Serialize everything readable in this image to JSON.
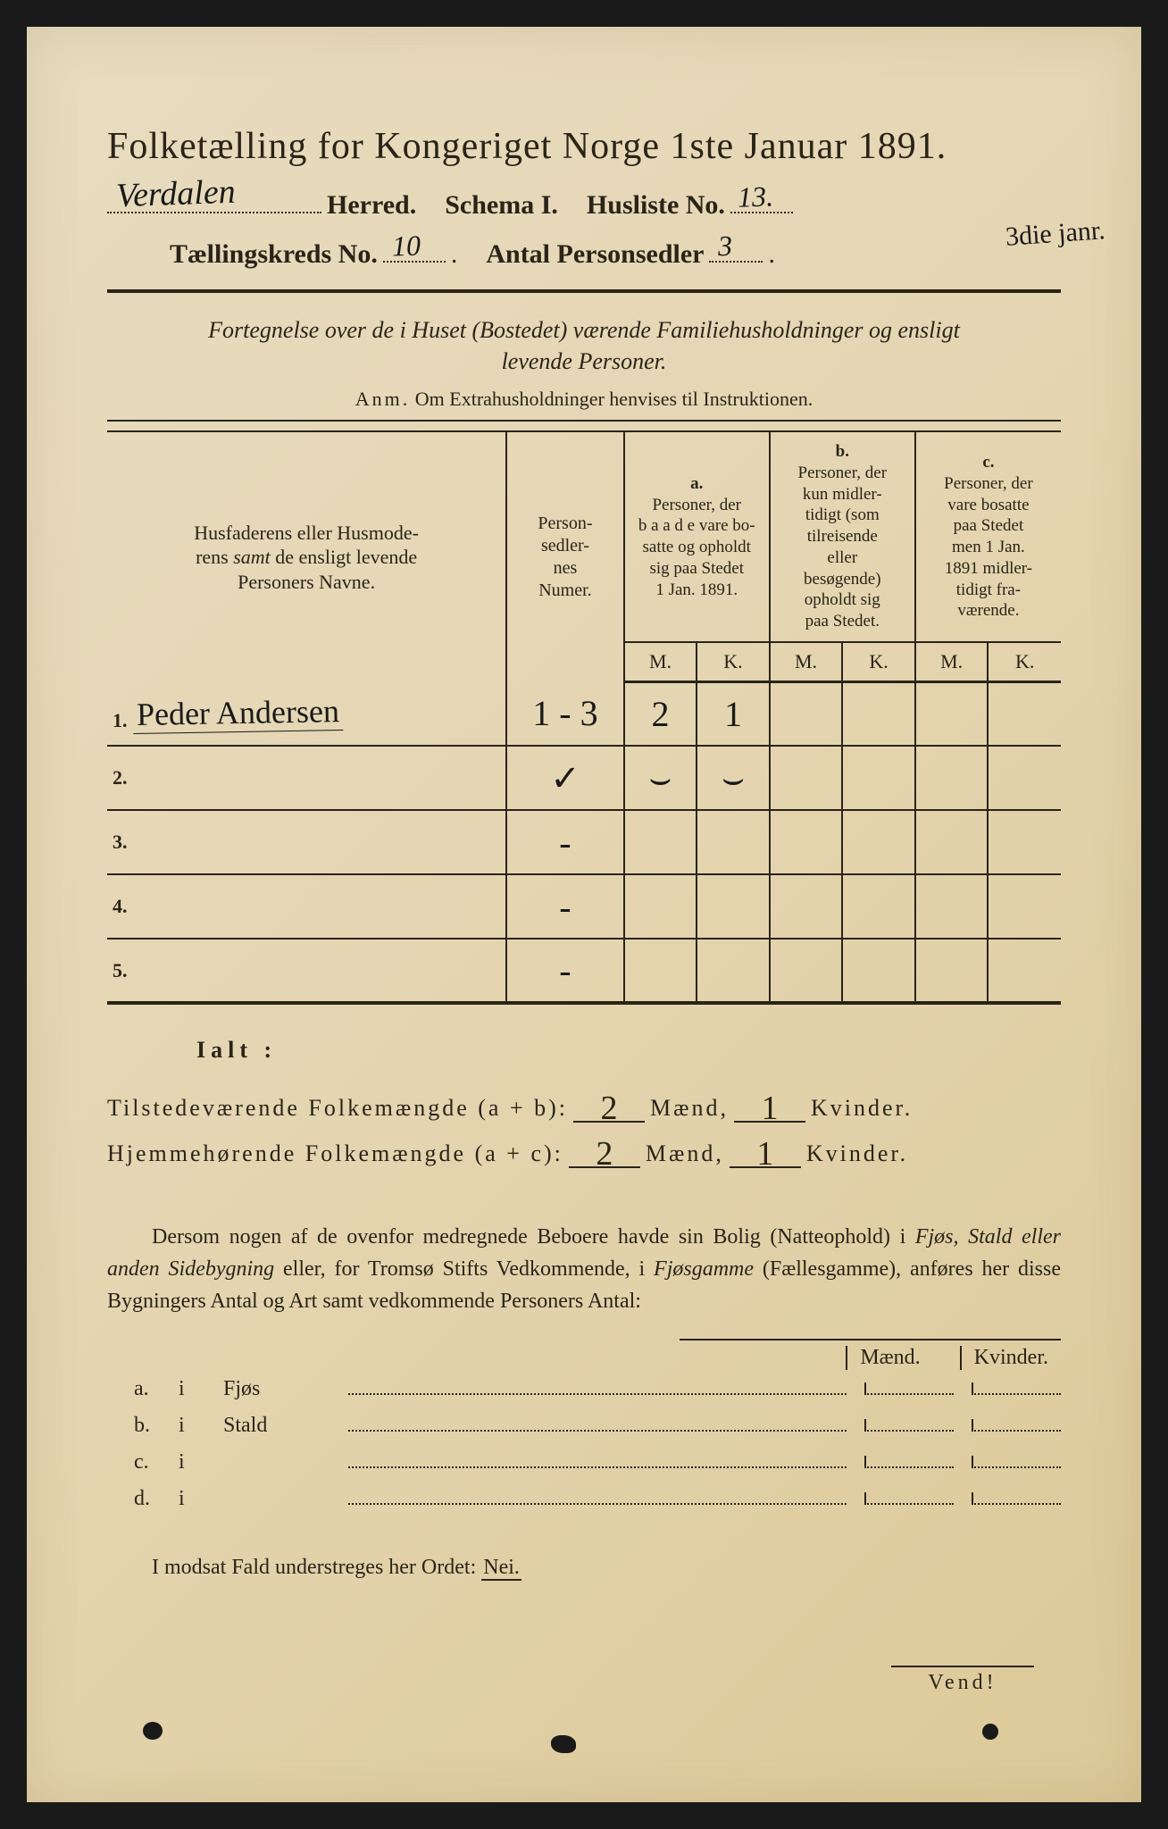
{
  "title": "Folketælling for Kongeriget Norge 1ste Januar 1891.",
  "header": {
    "herred_value": "Verdalen",
    "herred_label": "Herred.",
    "schema_label": "Schema I.",
    "husliste_label": "Husliste No.",
    "husliste_value": "13.",
    "kreds_label": "Tællingskreds No.",
    "kreds_value": "10",
    "antal_label": "Antal Personsedler",
    "antal_value": "3",
    "margin_note": "3die janr."
  },
  "subtitle": {
    "line1": "Fortegnelse over de i Huset (Bostedet) værende Familiehusholdninger og ensligt",
    "line2": "levende Personer."
  },
  "anm": {
    "lead": "Anm.",
    "text": "Om Extrahusholdninger henvises til Instruktionen."
  },
  "table": {
    "col_name": "Husfaderens eller Husmoderens samt de ensligt levende Personers Navne.",
    "col_num": "Personsedlernes Numer.",
    "col_a_label": "a.",
    "col_a": "Personer, der baade vare bosatte og opholdt sig paa Stedet 1 Jan. 1891.",
    "col_b_label": "b.",
    "col_b": "Personer, der kun midlertidigt (som tilreisende eller besøgende) opholdt sig paa Stedet.",
    "col_c_label": "c.",
    "col_c": "Personer, der vare bosatte paa Stedet men 1 Jan. 1891 midlertidigt fraværende.",
    "mk_m": "M.",
    "mk_k": "K.",
    "rows": [
      {
        "n": "1.",
        "name": "Peder Andersen",
        "num": "1 - 3",
        "a_m": "2",
        "a_k": "1",
        "b_m": "",
        "b_k": "",
        "c_m": "",
        "c_k": ""
      },
      {
        "n": "2.",
        "name": "",
        "num": "✓",
        "a_m": "⌣",
        "a_k": "⌣",
        "b_m": "",
        "b_k": "",
        "c_m": "",
        "c_k": ""
      },
      {
        "n": "3.",
        "name": "",
        "num": "-",
        "a_m": "",
        "a_k": "",
        "b_m": "",
        "b_k": "",
        "c_m": "",
        "c_k": ""
      },
      {
        "n": "4.",
        "name": "",
        "num": "-",
        "a_m": "",
        "a_k": "",
        "b_m": "",
        "b_k": "",
        "c_m": "",
        "c_k": ""
      },
      {
        "n": "5.",
        "name": "",
        "num": "-",
        "a_m": "",
        "a_k": "",
        "b_m": "",
        "b_k": "",
        "c_m": "",
        "c_k": ""
      }
    ]
  },
  "ialt": {
    "label": "Ialt :",
    "line1_label": "Tilstedeværende Folkemængde (a + b):",
    "line1_m": "2",
    "line1_k": "1",
    "line2_label": "Hjemmehørende Folkemængde (a + c):",
    "line2_m": "2",
    "line2_k": "1",
    "maend": "Mænd,",
    "kvinder": "Kvinder."
  },
  "para": {
    "text1": "Dersom nogen af de ovenfor medregnede Beboere havde sin Bolig (Natteophold) i ",
    "it1": "Fjøs, Stald eller anden Sidebygning",
    "text2": " eller, for Tromsø Stifts Vedkommende, i ",
    "it2": "Fjøsgamme",
    "text3": " (Fællesgamme), anføres her disse Bygningers Antal og Art samt vedkommende Personers Antal:"
  },
  "bldg": {
    "head_m": "Mænd.",
    "head_k": "Kvinder.",
    "rows": [
      {
        "lbl": "a.",
        "i": "i",
        "type": "Fjøs"
      },
      {
        "lbl": "b.",
        "i": "i",
        "type": "Stald"
      },
      {
        "lbl": "c.",
        "i": "i",
        "type": ""
      },
      {
        "lbl": "d.",
        "i": "i",
        "type": ""
      }
    ]
  },
  "nei": {
    "text": "I modsat Fald understreges her Ordet: ",
    "word": "Nei."
  },
  "vend": "Vend!"
}
